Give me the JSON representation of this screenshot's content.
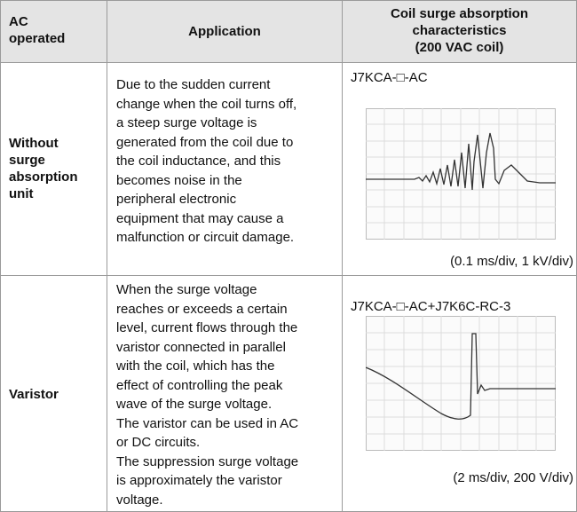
{
  "table": {
    "header": [
      [
        "AC",
        "operated"
      ],
      [
        "Application"
      ],
      [
        "Coil surge absorption",
        "characteristics",
        "(200 VAC coil)"
      ]
    ],
    "rows": [
      {
        "label": [
          "Without",
          "surge",
          "absorption",
          "unit"
        ],
        "application": [
          "Due to the sudden current",
          "change when the coil turns off,",
          "a steep surge voltage is",
          "generated from the coil due to",
          "the coil inductance, and this",
          "becomes noise in the",
          "peripheral electronic",
          "equipment that may cause a",
          "malfunction or circuit damage."
        ],
        "model": "J7KCA-□-AC",
        "scale": "(0.1 ms/div, 1 kV/div)"
      },
      {
        "label": [
          "Varistor"
        ],
        "application": [
          "When the surge voltage",
          "reaches or exceeds a certain",
          "level, current flows through the",
          "varistor connected in parallel",
          "with the coil, which has the",
          "effect of controlling the peak",
          "wave of the surge voltage.",
          "The varistor can be used in AC",
          "or DC circuits.",
          "The suppression surge voltage",
          "is approximately the varistor",
          "voltage."
        ],
        "model": "J7KCA-□-AC+J7K6C-RC-3",
        "scale": "(2 ms/div, 200 V/div)"
      }
    ]
  }
}
